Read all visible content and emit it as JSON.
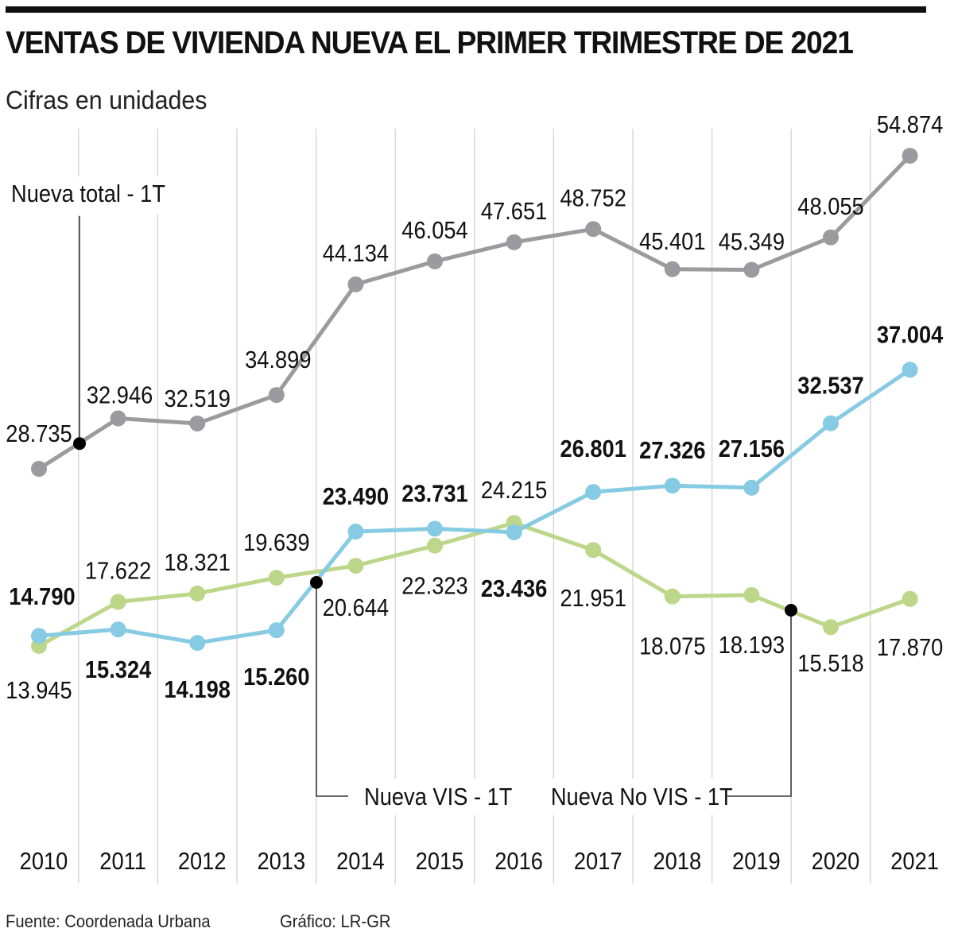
{
  "header": {
    "title": "VENTAS DE VIVIENDA NUEVA EL PRIMER TRIMESTRE DE 2021",
    "subtitle": "Cifras en unidades"
  },
  "footer": {
    "source": "Fuente: Coordenada Urbana",
    "credit": "Gráfico: LR-GR"
  },
  "colors": {
    "total": "#9b9a9f",
    "vis": "#86cbe3",
    "no_vis": "#bcd68a",
    "grid": "#cfcfcf",
    "callout": "#111111"
  },
  "chart_data": {
    "type": "line",
    "title": "VENTAS DE VIVIENDA NUEVA EL PRIMER TRIMESTRE DE 2021",
    "subtitle": "Cifras en unidades",
    "xlabel": "",
    "ylabel": "",
    "x": [
      "2010",
      "2011",
      "2012",
      "2013",
      "2014",
      "2015",
      "2016",
      "2017",
      "2018",
      "2019",
      "2020",
      "2021"
    ],
    "grid": "vertical",
    "ylim": [
      0,
      56000
    ],
    "series": [
      {
        "key": "total",
        "name": "Nueva total - 1T",
        "values": [
          28735,
          32946,
          32519,
          34899,
          44134,
          46054,
          47651,
          48752,
          45401,
          45349,
          48055,
          54874
        ],
        "labels": [
          "28.735",
          "32.946",
          "32.519",
          "34.899",
          "44.134",
          "46.054",
          "47.651",
          "48.752",
          "45.401",
          "45.349",
          "48.055",
          "54.874"
        ],
        "label_weight": "normal"
      },
      {
        "key": "vis",
        "name": "Nueva VIS - 1T",
        "values": [
          14790,
          15324,
          14198,
          15260,
          23490,
          23731,
          23436,
          26801,
          27326,
          27156,
          32537,
          37004
        ],
        "labels": [
          "14.790",
          "15.324",
          "14.198",
          "15.260",
          "23.490",
          "23.731",
          "23.436",
          "26.801",
          "27.326",
          "27.156",
          "32.537",
          "37.004"
        ],
        "label_weight": "bold"
      },
      {
        "key": "no_vis",
        "name": "Nueva No VIS - 1T",
        "values": [
          13945,
          17622,
          18321,
          19639,
          20644,
          22323,
          24215,
          21951,
          18075,
          18193,
          15518,
          17870
        ],
        "labels": [
          "13.945",
          "17.622",
          "18.321",
          "19.639",
          "20.644",
          "22.323",
          "24.215",
          "21.951",
          "18.075",
          "18.193",
          "15.518",
          "17.870"
        ],
        "label_weight": "normal"
      }
    ],
    "callouts": [
      {
        "text": "Nueva total - 1T",
        "series": "total"
      },
      {
        "text": "Nueva VIS - 1T",
        "series": "vis"
      },
      {
        "text": "Nueva No VIS - 1T",
        "series": "no_vis"
      }
    ]
  }
}
